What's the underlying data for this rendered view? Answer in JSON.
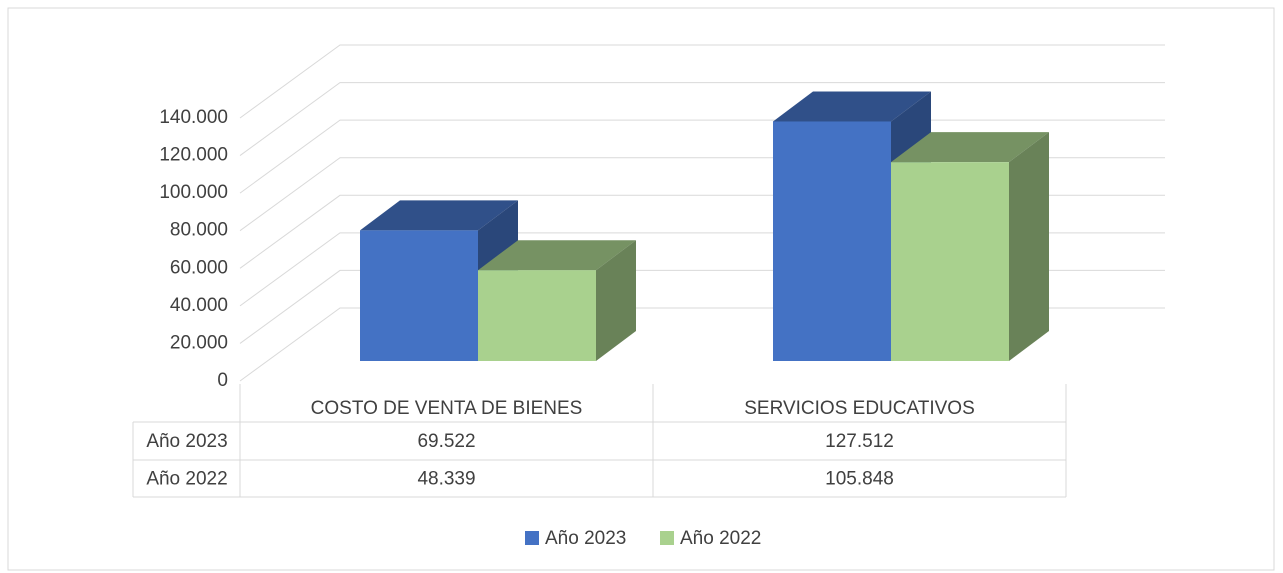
{
  "chart_data": {
    "type": "bar3d",
    "categories": [
      "COSTO DE VENTA DE BIENES",
      "SERVICIOS EDUCATIVOS"
    ],
    "series": [
      {
        "name": "Año 2023",
        "color": "#4472c4",
        "values": [
          69522,
          127512
        ],
        "value_labels": [
          "69.522",
          "127.512"
        ]
      },
      {
        "name": "Año 2022",
        "color": "#a9d18e",
        "values": [
          48339,
          105848
        ],
        "value_labels": [
          "48.339",
          "105.848"
        ]
      }
    ],
    "ylim": [
      0,
      140000
    ],
    "yticks": [
      0,
      {
        "value": 20000,
        "label": "20.000"
      },
      {
        "value": 40000,
        "label": "40.000"
      },
      {
        "value": 60000,
        "label": "60.000"
      },
      {
        "value": 80000,
        "label": "80.000"
      },
      {
        "value": 100000,
        "label": "100.000"
      },
      {
        "value": 120000,
        "label": "120.000"
      },
      {
        "value": 140000,
        "label": "140.000"
      }
    ],
    "grid": true,
    "legend": "bottom"
  }
}
